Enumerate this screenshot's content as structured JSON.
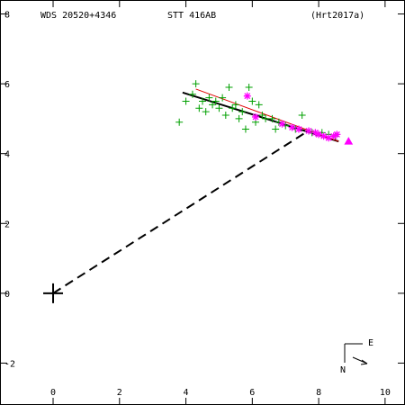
{
  "header": {
    "left": "WDS 20520+4346",
    "center": "STT 416AB",
    "right": "(Hrt2017a)"
  },
  "compass": {
    "east_label": "E",
    "north_label": "N"
  },
  "chart_data": {
    "type": "scatter",
    "title": "STT 416AB",
    "xlim": [
      -1.6,
      10.6
    ],
    "ylim": [
      -3.2,
      8.4
    ],
    "x_ticks": [
      0,
      2,
      4,
      6,
      8,
      10
    ],
    "y_ticks": [
      8,
      6,
      4,
      2,
      0,
      -2
    ],
    "x_tick_labels": [
      "0",
      "2",
      "4",
      "6",
      "8",
      "10"
    ],
    "y_tick_labels": [
      "8",
      "6",
      "4",
      "2",
      "0",
      "-2"
    ],
    "grid": false,
    "primary": {
      "x": 0,
      "y": 0
    },
    "secondary_at_epoch": {
      "x": 7.6,
      "y": 4.6
    },
    "orbit_line": {
      "from": [
        3.9,
        5.75
      ],
      "to": [
        8.6,
        4.35
      ]
    },
    "red_fit_line": {
      "from": [
        4.3,
        5.85
      ],
      "to": [
        8.6,
        4.35
      ]
    },
    "series": [
      {
        "marker": "plus",
        "color": "#00a000",
        "points": [
          [
            3.8,
            4.9
          ],
          [
            4.0,
            5.5
          ],
          [
            4.2,
            5.7
          ],
          [
            4.3,
            6.0
          ],
          [
            4.4,
            5.3
          ],
          [
            4.5,
            5.5
          ],
          [
            4.6,
            5.2
          ],
          [
            4.7,
            5.6
          ],
          [
            4.8,
            5.4
          ],
          [
            4.9,
            5.5
          ],
          [
            5.0,
            5.3
          ],
          [
            5.1,
            5.6
          ],
          [
            5.2,
            5.1
          ],
          [
            5.3,
            5.9
          ],
          [
            5.4,
            5.3
          ],
          [
            5.5,
            5.4
          ],
          [
            5.6,
            5.0
          ],
          [
            5.7,
            5.2
          ],
          [
            5.8,
            4.7
          ],
          [
            5.9,
            5.9
          ],
          [
            6.0,
            5.5
          ],
          [
            6.1,
            4.9
          ],
          [
            6.2,
            5.4
          ],
          [
            6.3,
            5.1
          ],
          [
            6.4,
            5.0
          ],
          [
            6.6,
            5.0
          ],
          [
            6.7,
            4.7
          ],
          [
            6.8,
            4.9
          ],
          [
            7.0,
            4.8
          ],
          [
            7.3,
            4.7
          ],
          [
            7.5,
            5.1
          ],
          [
            7.8,
            4.6
          ],
          [
            8.1,
            4.6
          ],
          [
            8.3,
            4.55
          ],
          [
            8.5,
            4.5
          ]
        ]
      },
      {
        "marker": "star",
        "color": "#ff00ff",
        "points": [
          [
            5.85,
            5.65
          ],
          [
            6.1,
            5.05
          ],
          [
            6.9,
            4.85
          ],
          [
            7.2,
            4.75
          ],
          [
            7.4,
            4.7
          ],
          [
            7.7,
            4.65
          ],
          [
            7.9,
            4.6
          ],
          [
            8.0,
            4.55
          ],
          [
            8.15,
            4.5
          ],
          [
            8.3,
            4.45
          ],
          [
            8.45,
            4.5
          ],
          [
            8.55,
            4.55
          ]
        ]
      },
      {
        "marker": "triangle",
        "color": "#ff00ff",
        "points": [
          [
            8.9,
            4.35
          ]
        ]
      }
    ]
  }
}
